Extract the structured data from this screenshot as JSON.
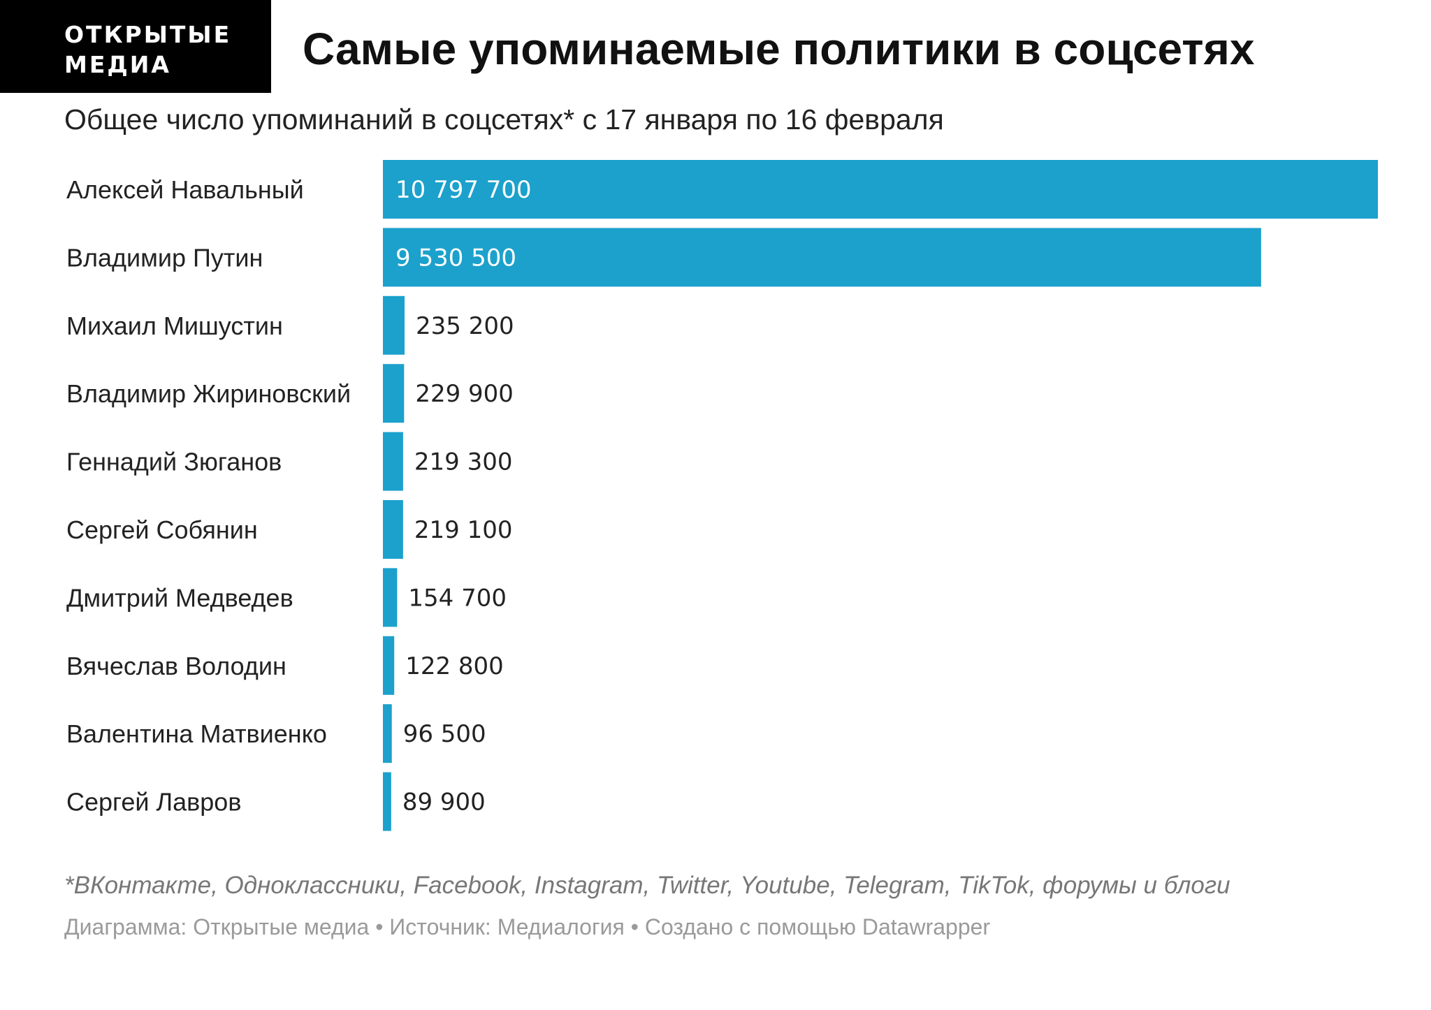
{
  "brand": {
    "line1": "ОТКРЫТЫЕ",
    "line2": "МЕДИА"
  },
  "chart_data": {
    "type": "bar",
    "orientation": "horizontal",
    "title": "Самые упоминаемые политики в соцсетях",
    "subtitle": "Общее число упоминаний в соцсетях* с 17 января по 16 февраля",
    "categories": [
      "Алексей Навальный",
      "Владимир Путин",
      "Михаил Мишустин",
      "Владимир Жириновский",
      "Геннадий Зюганов",
      "Сергей Собянин",
      "Дмитрий Медведев",
      "Вячеслав Володин",
      "Валентина Матвиенко",
      "Сергей Лавров"
    ],
    "values": [
      10797700,
      9530500,
      235200,
      229900,
      219300,
      219100,
      154700,
      122800,
      96500,
      89900
    ],
    "value_labels": [
      "10 797 700",
      "9 530 500",
      "235 200",
      "229 900",
      "219 300",
      "219 100",
      "154 700",
      "122 800",
      "96 500",
      "89 900"
    ],
    "xlim": [
      0,
      10797700
    ],
    "grid": false,
    "legend": "none",
    "bar_color": "#1ba1cc"
  },
  "footer": {
    "note": "*ВКонтакте, Одноклассники, Facebook, Instagram, Twitter, Youtube, Telegram, TikTok, форумы и блоги",
    "credits": "Диаграмма: Открытые медиа • Источник: Медиалогия • Создано с помощью Datawrapper"
  }
}
